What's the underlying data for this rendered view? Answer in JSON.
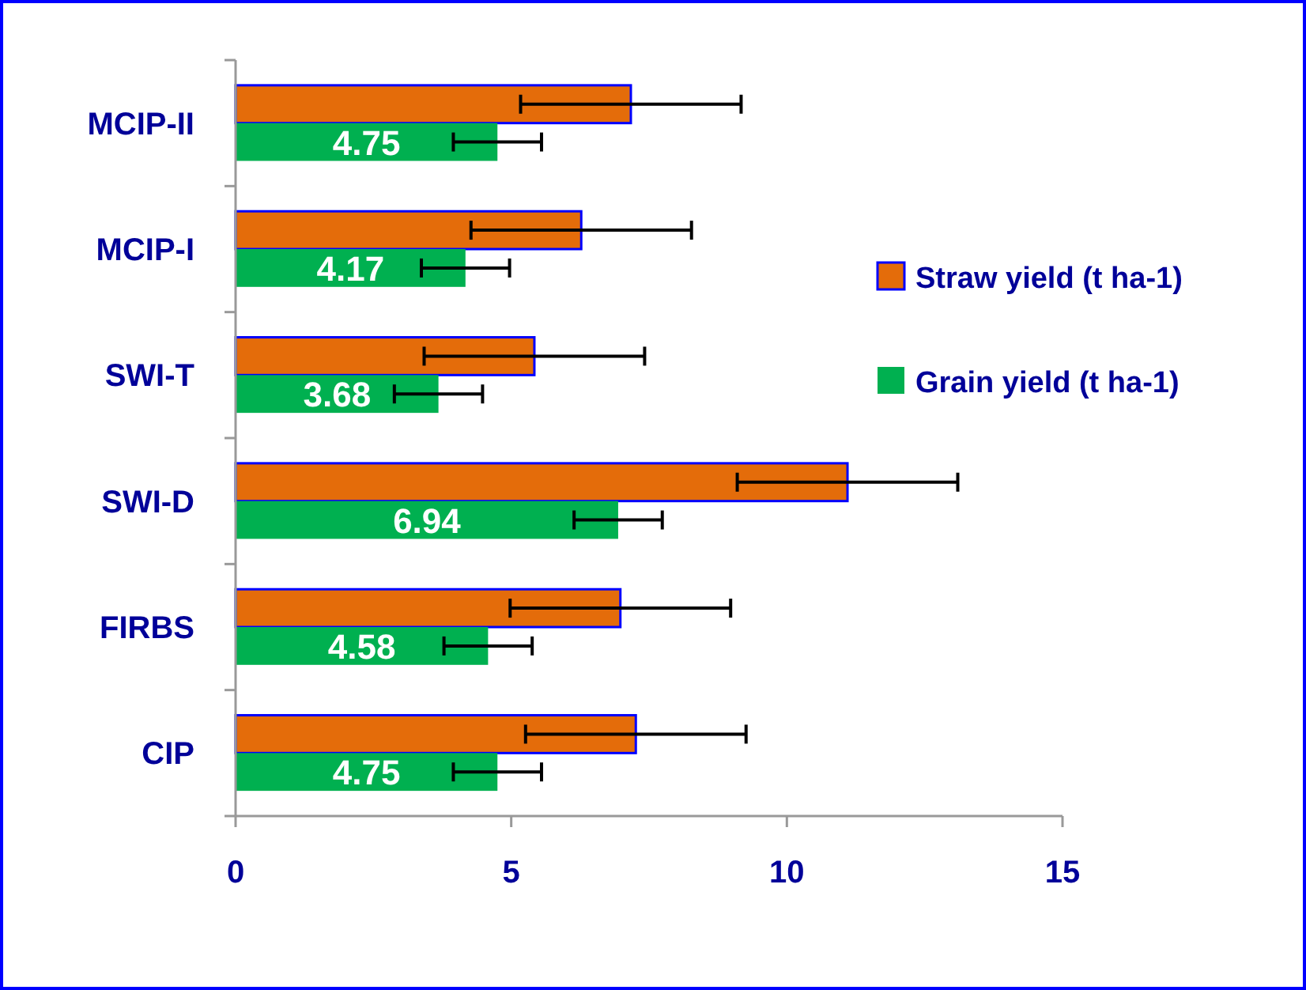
{
  "chart_data": {
    "type": "bar",
    "orientation": "horizontal",
    "categories": [
      "MCIP-II",
      "MCIP-I",
      "SWI-T",
      "SWI-D",
      "FIRBS",
      "CIP"
    ],
    "series": [
      {
        "name": "Straw yield  (t ha-1)",
        "color": "#e46c0a",
        "values": [
          7.17,
          6.27,
          5.42,
          11.1,
          6.98,
          7.26
        ],
        "errors": [
          2,
          2,
          2,
          2,
          2,
          2
        ]
      },
      {
        "name": "Grain yield  (t ha-1)",
        "color": "#00b050",
        "values": [
          4.75,
          4.17,
          3.68,
          6.94,
          4.58,
          4.75
        ],
        "errors": [
          0.8,
          0.8,
          0.8,
          0.8,
          0.8,
          0.8
        ],
        "value_labels": [
          "4.75",
          "4.17",
          "3.68",
          "6.94",
          "4.58",
          "4.75"
        ]
      }
    ],
    "xlim": [
      0,
      15
    ],
    "xticks": [
      0,
      5,
      10,
      15
    ],
    "legend": "right",
    "grid": false
  }
}
